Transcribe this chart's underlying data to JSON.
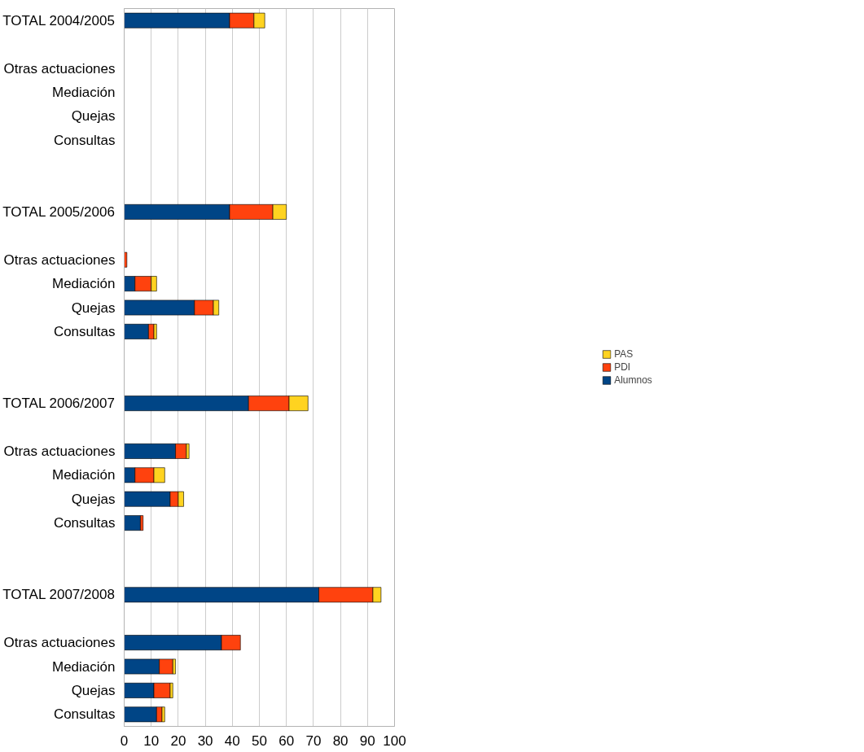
{
  "chart_data": {
    "type": "bar",
    "orientation": "horizontal",
    "stacked": true,
    "categories": [
      "TOTAL 2004/2005",
      null,
      "Otras actuaciones",
      "Mediación",
      "Quejas",
      "Consultas",
      null,
      null,
      "TOTAL 2005/2006",
      null,
      "Otras actuaciones",
      "Mediación",
      "Quejas",
      "Consultas",
      null,
      null,
      "TOTAL 2006/2007",
      null,
      "Otras actuaciones",
      "Mediación",
      "Quejas",
      "Consultas",
      null,
      null,
      "TOTAL 2007/2008",
      null,
      "Otras actuaciones",
      "Mediación",
      "Quejas",
      "Consultas"
    ],
    "series": [
      {
        "name": "Alumnos",
        "color": "#004586",
        "values": [
          39,
          null,
          null,
          null,
          null,
          null,
          null,
          null,
          39,
          null,
          null,
          4,
          26,
          9,
          null,
          null,
          46,
          null,
          19,
          4,
          17,
          6,
          null,
          null,
          72,
          null,
          36,
          13,
          11,
          12
        ]
      },
      {
        "name": "PDI",
        "color": "#ff420e",
        "values": [
          9,
          null,
          null,
          null,
          null,
          null,
          null,
          null,
          16,
          null,
          1,
          6,
          7,
          2,
          null,
          null,
          15,
          null,
          4,
          7,
          3,
          1,
          null,
          null,
          20,
          null,
          7,
          5,
          6,
          2
        ]
      },
      {
        "name": "PAS",
        "color": "#ffd320",
        "values": [
          4,
          null,
          null,
          null,
          null,
          null,
          null,
          null,
          5,
          null,
          null,
          2,
          2,
          1,
          null,
          null,
          7,
          null,
          1,
          4,
          2,
          null,
          null,
          null,
          3,
          null,
          null,
          1,
          1,
          1
        ]
      }
    ],
    "xlim": [
      0,
      100
    ],
    "xticks": [
      0,
      10,
      20,
      30,
      40,
      50,
      60,
      70,
      80,
      90,
      100
    ],
    "grid": "x",
    "legend": "right"
  }
}
